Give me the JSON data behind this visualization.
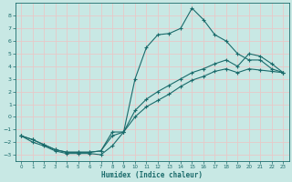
{
  "xlabel": "Humidex (Indice chaleur)",
  "xlim": [
    -0.5,
    23.5
  ],
  "ylim": [
    -3.5,
    9.0
  ],
  "background_color": "#c8e8e4",
  "grid_color": "#e8c8c8",
  "line_color": "#1a6b6b",
  "line1_x": [
    0,
    1,
    2,
    3,
    4,
    5,
    6,
    7,
    8,
    9,
    10,
    11,
    12,
    13,
    14,
    15,
    16,
    17,
    18,
    19,
    20,
    21,
    22,
    23
  ],
  "line1_y": [
    -1.5,
    -2.0,
    -2.3,
    -2.7,
    -2.9,
    -2.9,
    -2.9,
    -3.0,
    -2.3,
    -1.2,
    3.0,
    5.5,
    6.5,
    6.6,
    7.0,
    8.6,
    7.7,
    6.5,
    6.0,
    5.0,
    4.5,
    4.5,
    3.8,
    3.5
  ],
  "line2_x": [
    0,
    1,
    2,
    3,
    4,
    5,
    6,
    7,
    8,
    9,
    10,
    11,
    12,
    13,
    14,
    15,
    16,
    17,
    18,
    19,
    20,
    21,
    22,
    23
  ],
  "line2_y": [
    -1.5,
    -1.8,
    -2.2,
    -2.6,
    -2.8,
    -2.8,
    -2.8,
    -2.7,
    -1.5,
    -1.2,
    0.0,
    0.8,
    1.3,
    1.8,
    2.4,
    2.9,
    3.2,
    3.6,
    3.8,
    3.5,
    3.8,
    3.7,
    3.6,
    3.5
  ],
  "line3_x": [
    0,
    1,
    2,
    3,
    4,
    5,
    6,
    7,
    8,
    9,
    10,
    11,
    12,
    13,
    14,
    15,
    16,
    17,
    18,
    19,
    20,
    21,
    22,
    23
  ],
  "line3_y": [
    -1.5,
    -1.8,
    -2.2,
    -2.6,
    -2.8,
    -2.8,
    -2.8,
    -2.7,
    -1.2,
    -1.2,
    0.5,
    1.4,
    2.0,
    2.5,
    3.0,
    3.5,
    3.8,
    4.2,
    4.5,
    4.0,
    5.0,
    4.8,
    4.2,
    3.5
  ],
  "yticks": [
    -3,
    -2,
    -1,
    0,
    1,
    2,
    3,
    4,
    5,
    6,
    7,
    8
  ],
  "xticks": [
    0,
    1,
    2,
    3,
    4,
    5,
    6,
    7,
    8,
    9,
    10,
    11,
    12,
    13,
    14,
    15,
    16,
    17,
    18,
    19,
    20,
    21,
    22,
    23
  ]
}
